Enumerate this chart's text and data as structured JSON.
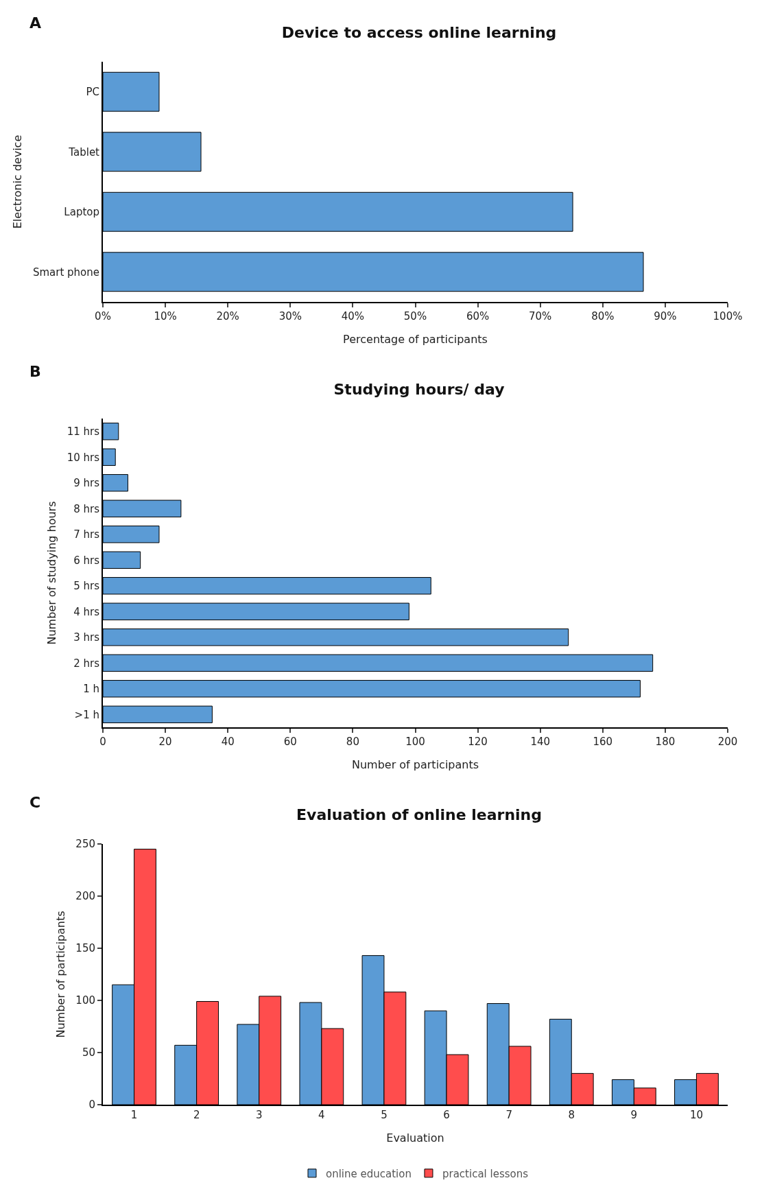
{
  "chart_data": [
    {
      "type": "bar",
      "orientation": "horizontal",
      "title": "Device to access online learning",
      "xlabel": "Percentage of participants",
      "ylabel": "Electronic device",
      "annotations": [
        "A"
      ],
      "categories": [
        "PC",
        "Tablet",
        "Laptop",
        "Smart phone"
      ],
      "series": [
        {
          "color": "#5b9bd5",
          "values": [
            9,
            15.7,
            75.2,
            86.5
          ]
        }
      ],
      "xlim": [
        0,
        100
      ],
      "xticks": [
        {
          "value": 0,
          "label": "0%"
        },
        {
          "value": 10,
          "label": "10%"
        },
        {
          "value": 20,
          "label": "20%"
        },
        {
          "value": 30,
          "label": "30%"
        },
        {
          "value": 40,
          "label": "40%"
        },
        {
          "value": 50,
          "label": "50%"
        },
        {
          "value": 60,
          "label": "60%"
        },
        {
          "value": 70,
          "label": "70%"
        },
        {
          "value": 80,
          "label": "80%"
        },
        {
          "value": 90,
          "label": "90%"
        },
        {
          "value": 100,
          "label": "100%"
        }
      ],
      "grid": false,
      "legend": false
    },
    {
      "type": "bar",
      "orientation": "horizontal",
      "title": "Studying hours/ day",
      "xlabel": "Number of participants",
      "ylabel": "Number of studying hours",
      "annotations": [
        "B"
      ],
      "categories": [
        "11 hrs",
        "10 hrs",
        "9 hrs",
        "8 hrs",
        "7 hrs",
        "6 hrs",
        "5 hrs",
        "4 hrs",
        "3 hrs",
        "2 hrs",
        "1 h",
        ">1 h"
      ],
      "series": [
        {
          "color": "#5b9bd5",
          "values": [
            5,
            4,
            8,
            25,
            18,
            12,
            105,
            98,
            149,
            176,
            172,
            35
          ]
        }
      ],
      "xlim": [
        0,
        200
      ],
      "xticks": [
        0,
        20,
        40,
        60,
        80,
        100,
        120,
        140,
        160,
        180,
        200
      ],
      "grid": false,
      "legend": false
    },
    {
      "type": "bar",
      "title": "Evaluation of online learning",
      "xlabel": "Evaluation",
      "ylabel": "Number of participants",
      "annotations": [
        "C"
      ],
      "categories": [
        "1",
        "2",
        "3",
        "4",
        "5",
        "6",
        "7",
        "8",
        "9",
        "10"
      ],
      "series": [
        {
          "name": "online education",
          "color": "#5b9bd5",
          "values": [
            115,
            57,
            77,
            98,
            143,
            90,
            97,
            82,
            24,
            24
          ]
        },
        {
          "name": "practical lessons",
          "color": "#ff4d4d",
          "values": [
            245,
            99,
            104,
            73,
            108,
            48,
            56,
            30,
            16,
            30
          ]
        }
      ],
      "ylim": [
        0,
        250
      ],
      "yticks": [
        0,
        50,
        100,
        150,
        200,
        250
      ],
      "grid": false,
      "legend": "bottom"
    }
  ]
}
